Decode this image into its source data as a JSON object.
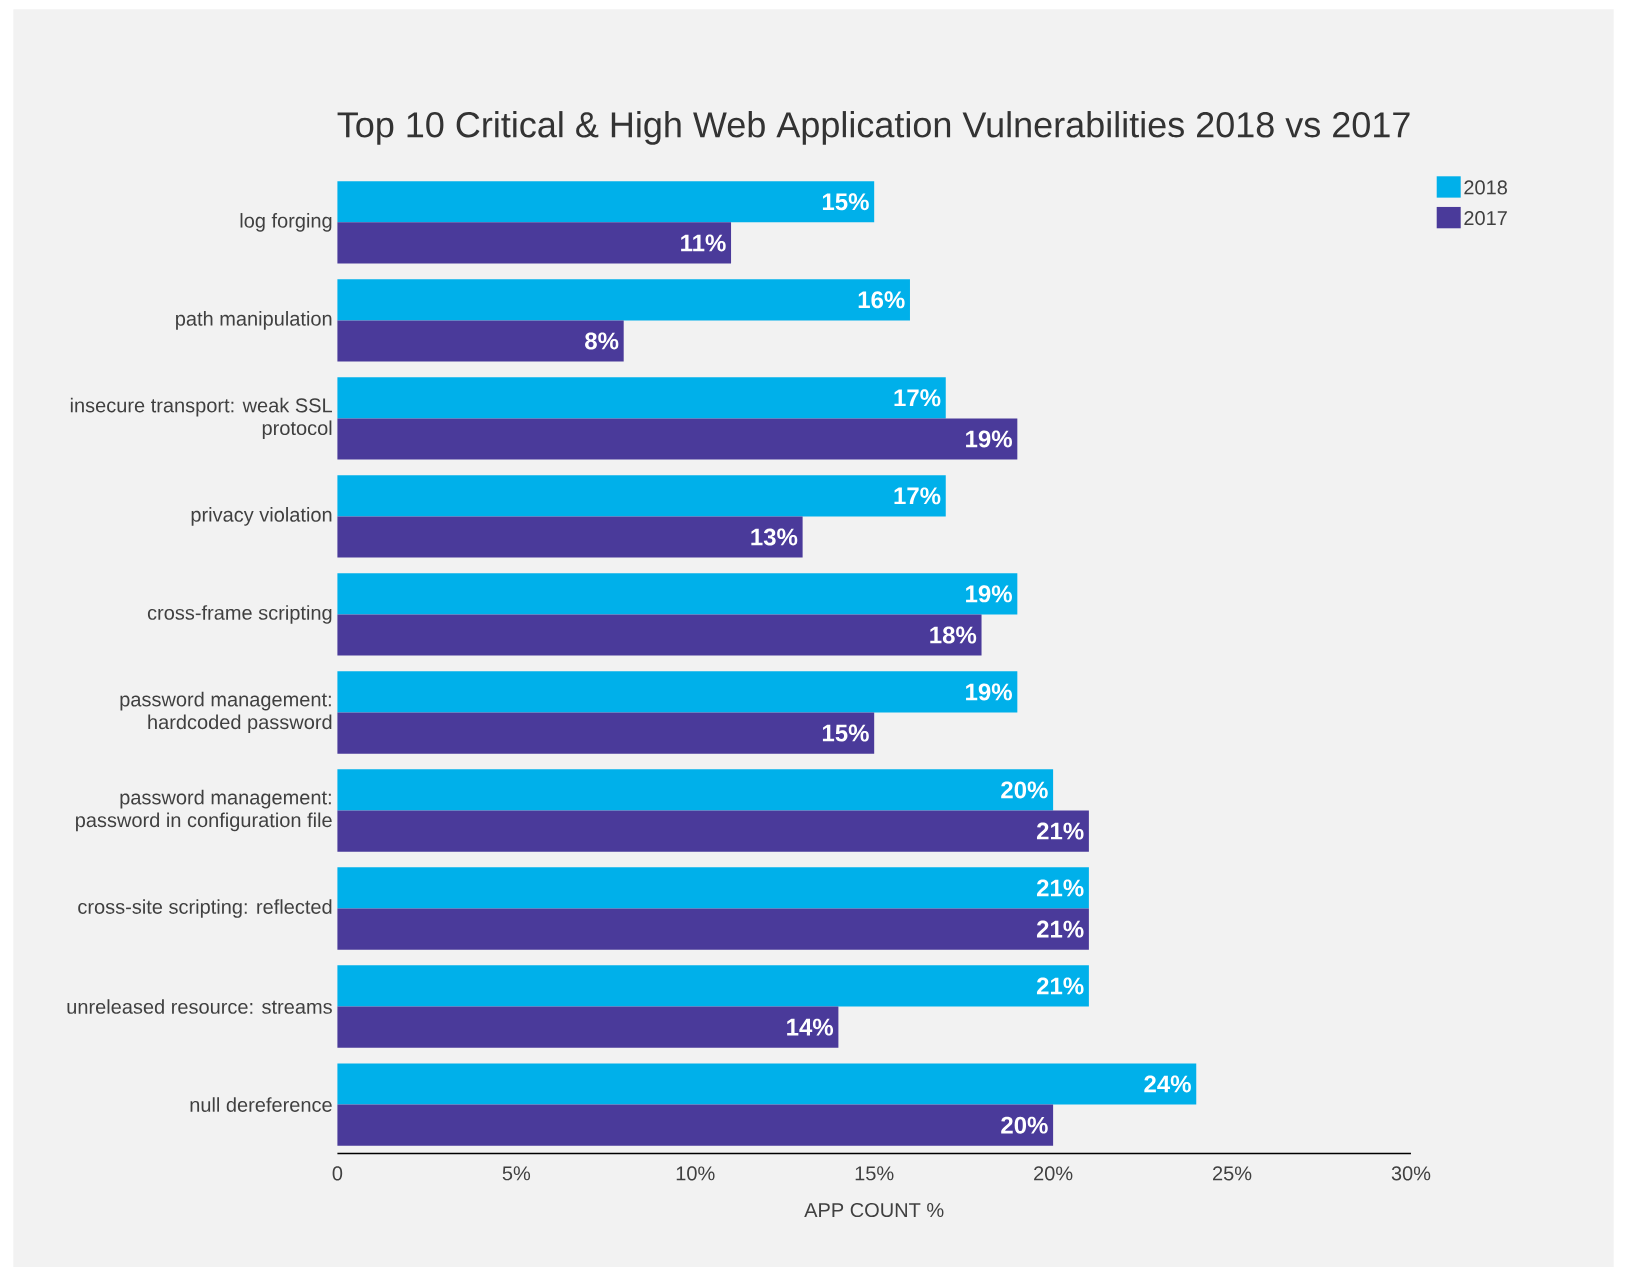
{
  "chart_data": {
    "type": "bar",
    "orientation": "horizontal",
    "title": "Top 10 Critical & High Web Application Vulnerabilities 2018 vs 2017",
    "xlabel": "APP COUNT %",
    "categories": [
      "log forging",
      "path manipulation",
      "insecure transport: weak SSL protocol",
      "privacy violation",
      "cross-frame scripting",
      "password management: hardcoded password",
      "password management: password in configuration file",
      "cross-site scripting: reflected",
      "unreleased resource: streams",
      "null dereference"
    ],
    "series": [
      {
        "name": "2018",
        "color": "#00b0ea",
        "values": [
          15,
          16,
          17,
          17,
          19,
          19,
          20,
          21,
          21,
          24
        ],
        "value_labels": [
          "15%",
          "16%",
          "17%",
          "17%",
          "19%",
          "19%",
          "20%",
          "21%",
          "21%",
          "24%"
        ]
      },
      {
        "name": "2017",
        "color": "#4a3a9a",
        "values": [
          11,
          8,
          19,
          13,
          18,
          15,
          21,
          21,
          14,
          20
        ],
        "value_labels": [
          "11%",
          "8%",
          "19%",
          "13%",
          "18%",
          "15%",
          "21%",
          "21%",
          "14%",
          "20%"
        ]
      }
    ],
    "xlim": [
      0,
      30
    ],
    "xticks": [
      0,
      {
        "value": 5,
        "label": "5%"
      },
      {
        "value": 10,
        "label": "10%"
      },
      {
        "value": 15,
        "label": "15%"
      },
      {
        "value": 20,
        "label": "20%"
      },
      {
        "value": 25,
        "label": "25%"
      },
      {
        "value": 30,
        "label": "30%"
      }
    ],
    "grid": false,
    "legend": "top right"
  }
}
